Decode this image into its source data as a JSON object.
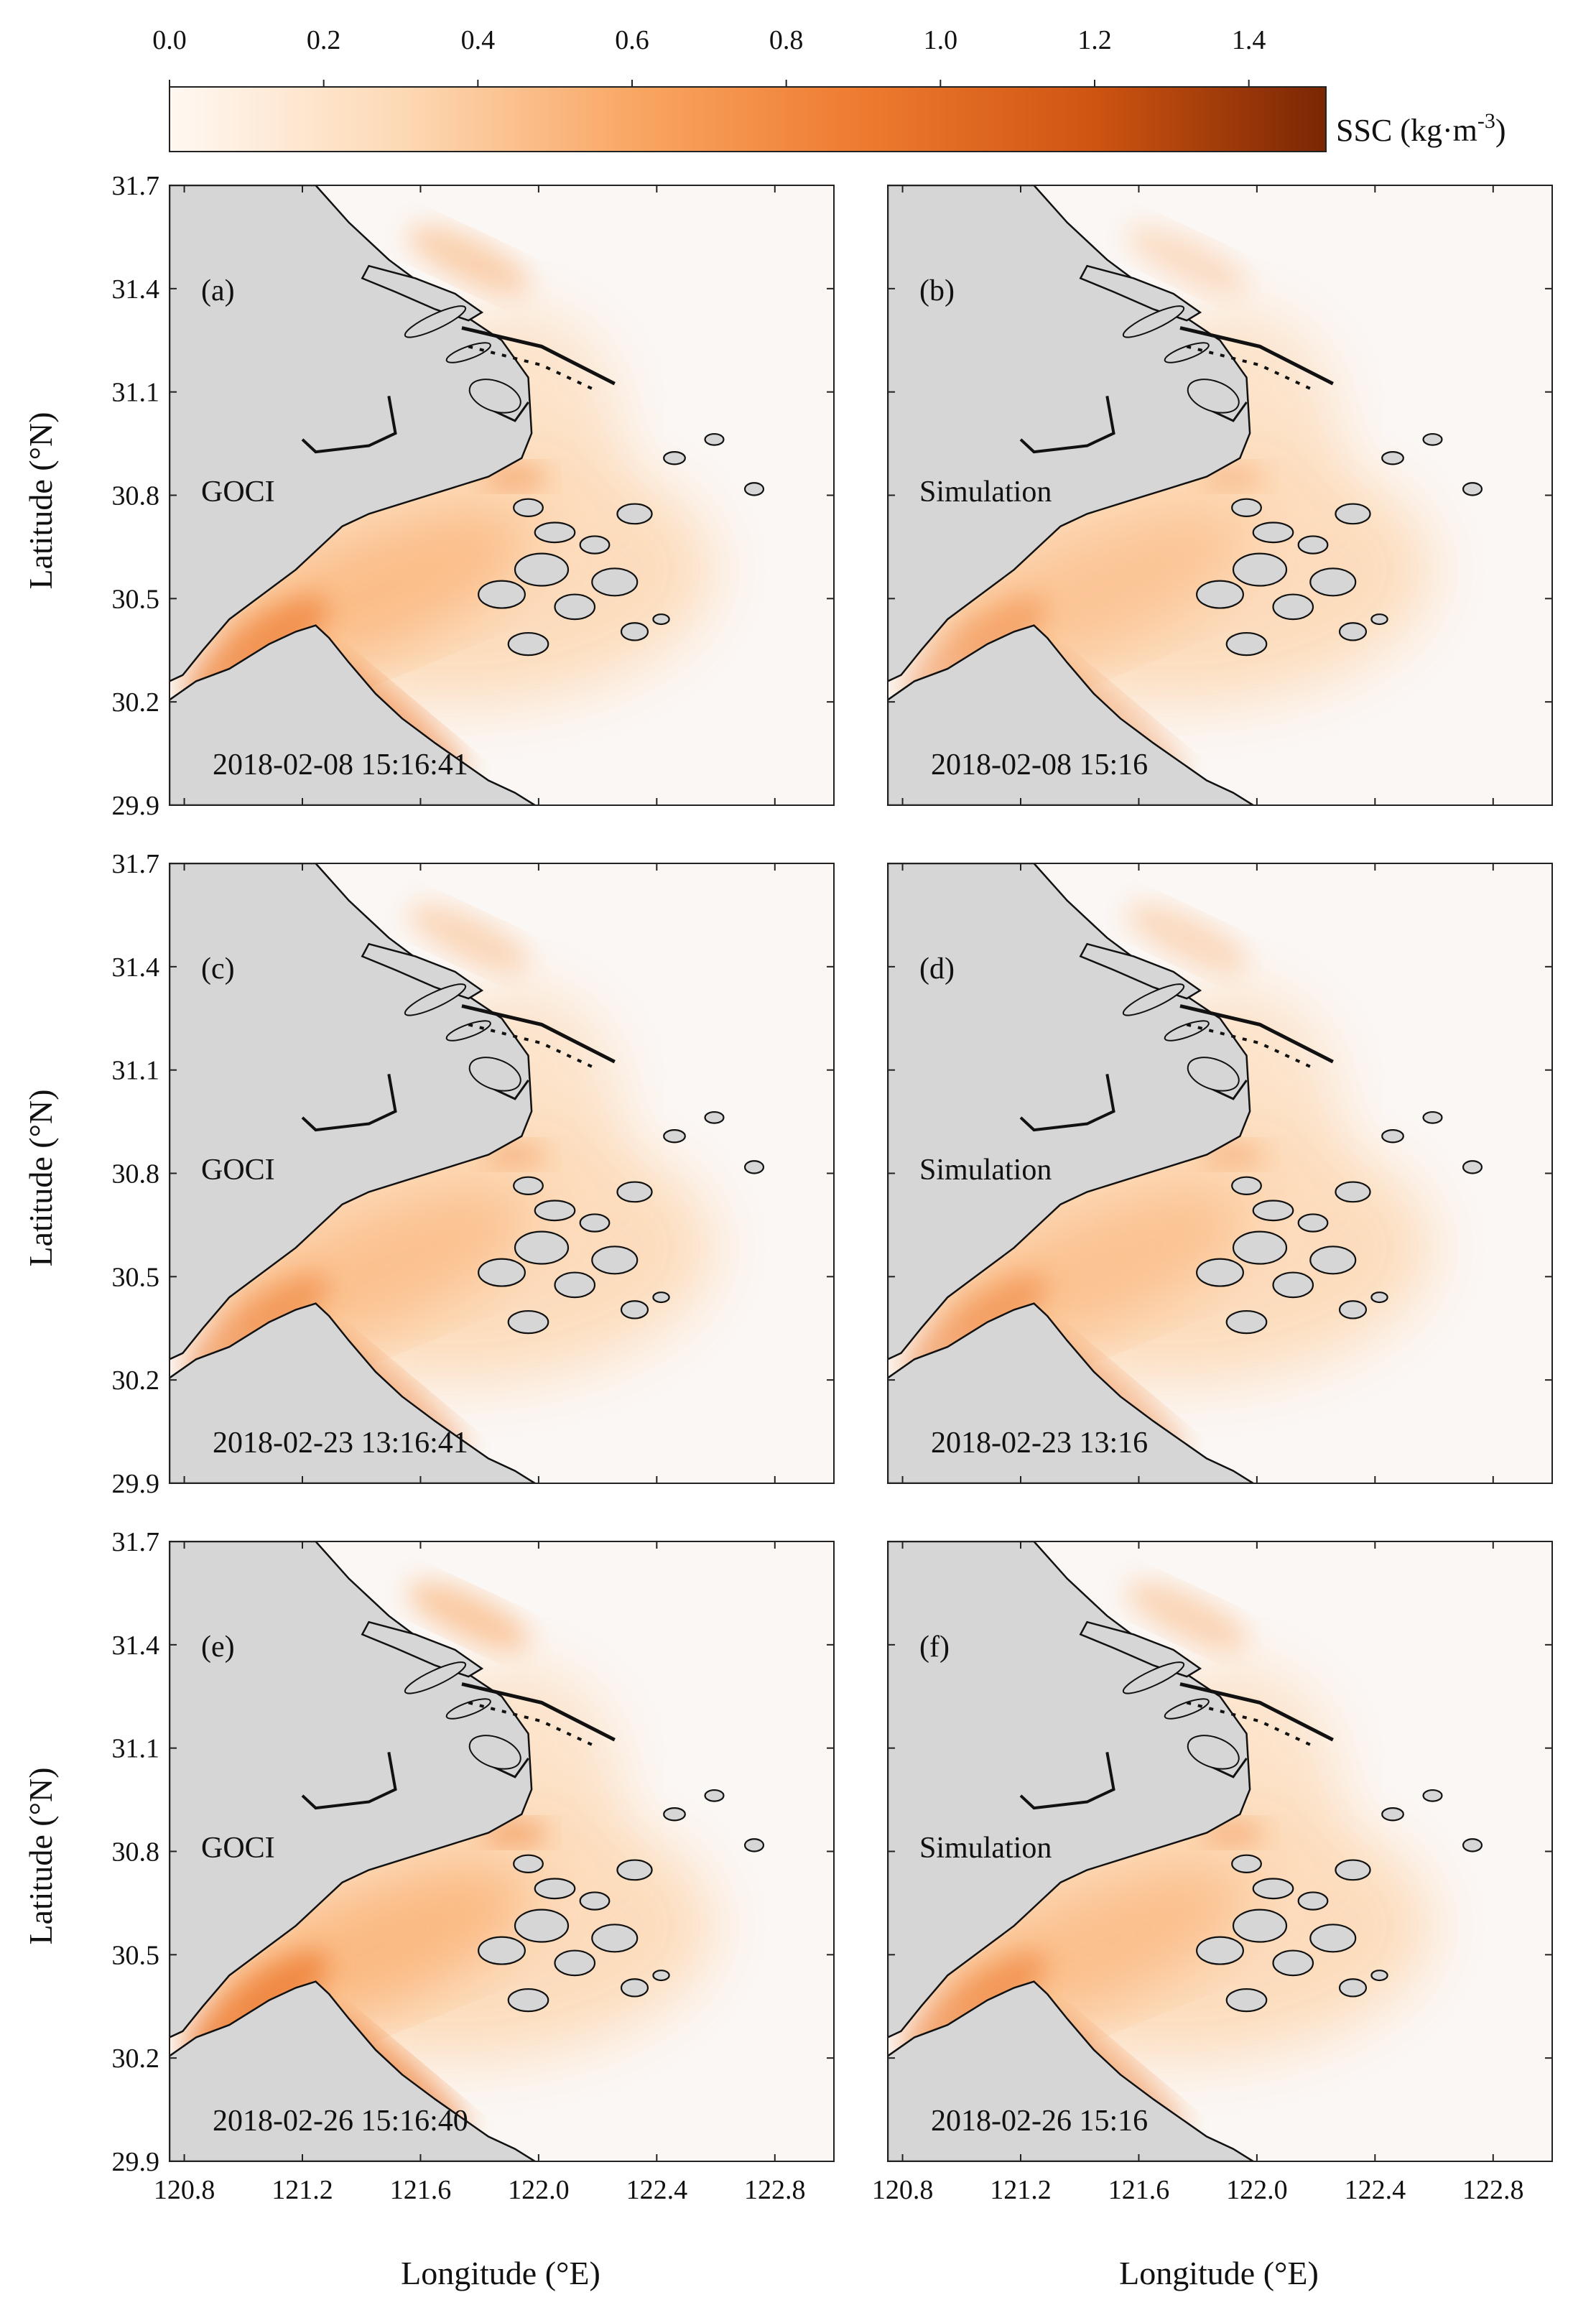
{
  "colorbar": {
    "ticks": [
      "0.0",
      "0.2",
      "0.4",
      "0.6",
      "0.8",
      "1.0",
      "1.2",
      "1.4"
    ],
    "range": [
      0,
      1.5
    ],
    "label_main": "SSC (kg·m",
    "label_sup": "-3",
    "label_end": ")",
    "colors": [
      "#fff8f2",
      "#fdd9b5",
      "#f9a764",
      "#ee7a2f",
      "#cf5412",
      "#7a2604"
    ]
  },
  "axes": {
    "ylabel": "Latitude (°N)",
    "xlabel": "Longitude (°E)",
    "lat_ticks": [
      "31.7",
      "31.4",
      "31.1",
      "30.8",
      "30.5",
      "30.2",
      "29.9"
    ],
    "lon_ticks": [
      "120.8",
      "121.2",
      "121.6",
      "122.0",
      "122.4",
      "122.8"
    ],
    "lat_range": [
      29.9,
      31.7
    ],
    "lon_range": [
      120.75,
      123.0
    ]
  },
  "colors": {
    "land": "#d6d6d6",
    "sea": "#fbf7f4",
    "coast": "#111111"
  },
  "panels": [
    {
      "letter": "(a)",
      "source": "GOCI",
      "time": "2018-02-08 15:16:41",
      "intensity": 0.85
    },
    {
      "letter": "(b)",
      "source": "Simulation",
      "time": "2018-02-08 15:16",
      "intensity": 0.55
    },
    {
      "letter": "(c)",
      "source": "GOCI",
      "time": "2018-02-23 13:16:41",
      "intensity": 0.7
    },
    {
      "letter": "(d)",
      "source": "Simulation",
      "time": "2018-02-23 13:16",
      "intensity": 0.65
    },
    {
      "letter": "(e)",
      "source": "GOCI",
      "time": "2018-02-26 15:16:40",
      "intensity": 1.0
    },
    {
      "letter": "(f)",
      "source": "Simulation",
      "time": "2018-02-26 15:16",
      "intensity": 0.75
    }
  ]
}
